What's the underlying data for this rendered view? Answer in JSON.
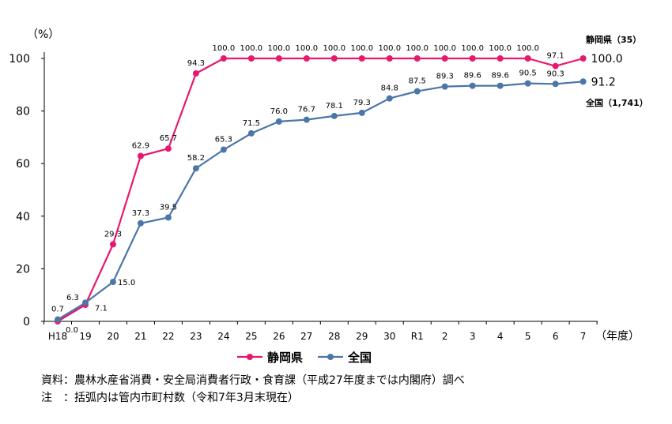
{
  "chart_data": {
    "type": "line",
    "y_unit": "（%）",
    "x_unit": "（年度）",
    "categories": [
      "H18",
      "19",
      "20",
      "21",
      "22",
      "23",
      "24",
      "25",
      "26",
      "27",
      "28",
      "29",
      "30",
      "R1",
      "2",
      "3",
      "4",
      "5",
      "6",
      "7"
    ],
    "ylim": [
      0,
      100
    ],
    "yticks": [
      0,
      20,
      40,
      60,
      80,
      100
    ],
    "grid": false,
    "legend_position": "bottom",
    "series": [
      {
        "name": "静岡県",
        "color": "#E6196E",
        "end_label": "静岡県（35）",
        "values": [
          0.0,
          6.3,
          29.3,
          62.9,
          65.7,
          94.3,
          100.0,
          100.0,
          100.0,
          100.0,
          100.0,
          100.0,
          100.0,
          100.0,
          100.0,
          100.0,
          100.0,
          100.0,
          97.1,
          100.0
        ],
        "labels": [
          "0.0",
          "6.3",
          "29.3",
          "62.9",
          "65.7",
          "94.3",
          "100.0",
          "100.0",
          "100.0",
          "100.0",
          "100.0",
          "100.0",
          "100.0",
          "100.0",
          "100.0",
          "100.0",
          "100.0",
          "100.0",
          "97.1",
          "100.0"
        ]
      },
      {
        "name": "全国",
        "color": "#4A76A8",
        "end_label": "全国（1,741）",
        "values": [
          0.7,
          7.1,
          15.0,
          37.3,
          39.5,
          58.2,
          65.3,
          71.5,
          76.0,
          76.7,
          78.1,
          79.3,
          84.8,
          87.5,
          89.3,
          89.6,
          89.6,
          90.5,
          90.3,
          91.2
        ],
        "labels": [
          "0.7",
          "7.1",
          "15.0",
          "37.3",
          "39.5",
          "58.2",
          "65.3",
          "71.5",
          "76.0",
          "76.7",
          "78.1",
          "79.3",
          "84.8",
          "87.5",
          "89.3",
          "89.6",
          "89.6",
          "90.5",
          "90.3",
          "91.2"
        ]
      }
    ]
  },
  "notes": {
    "source": "資料：農林水産省消費・安全局消費者行政・食育課（平成27年度までは内閣府）調べ",
    "note": "注　：括弧内は管内市町村数（令和7年3月末現在）"
  }
}
